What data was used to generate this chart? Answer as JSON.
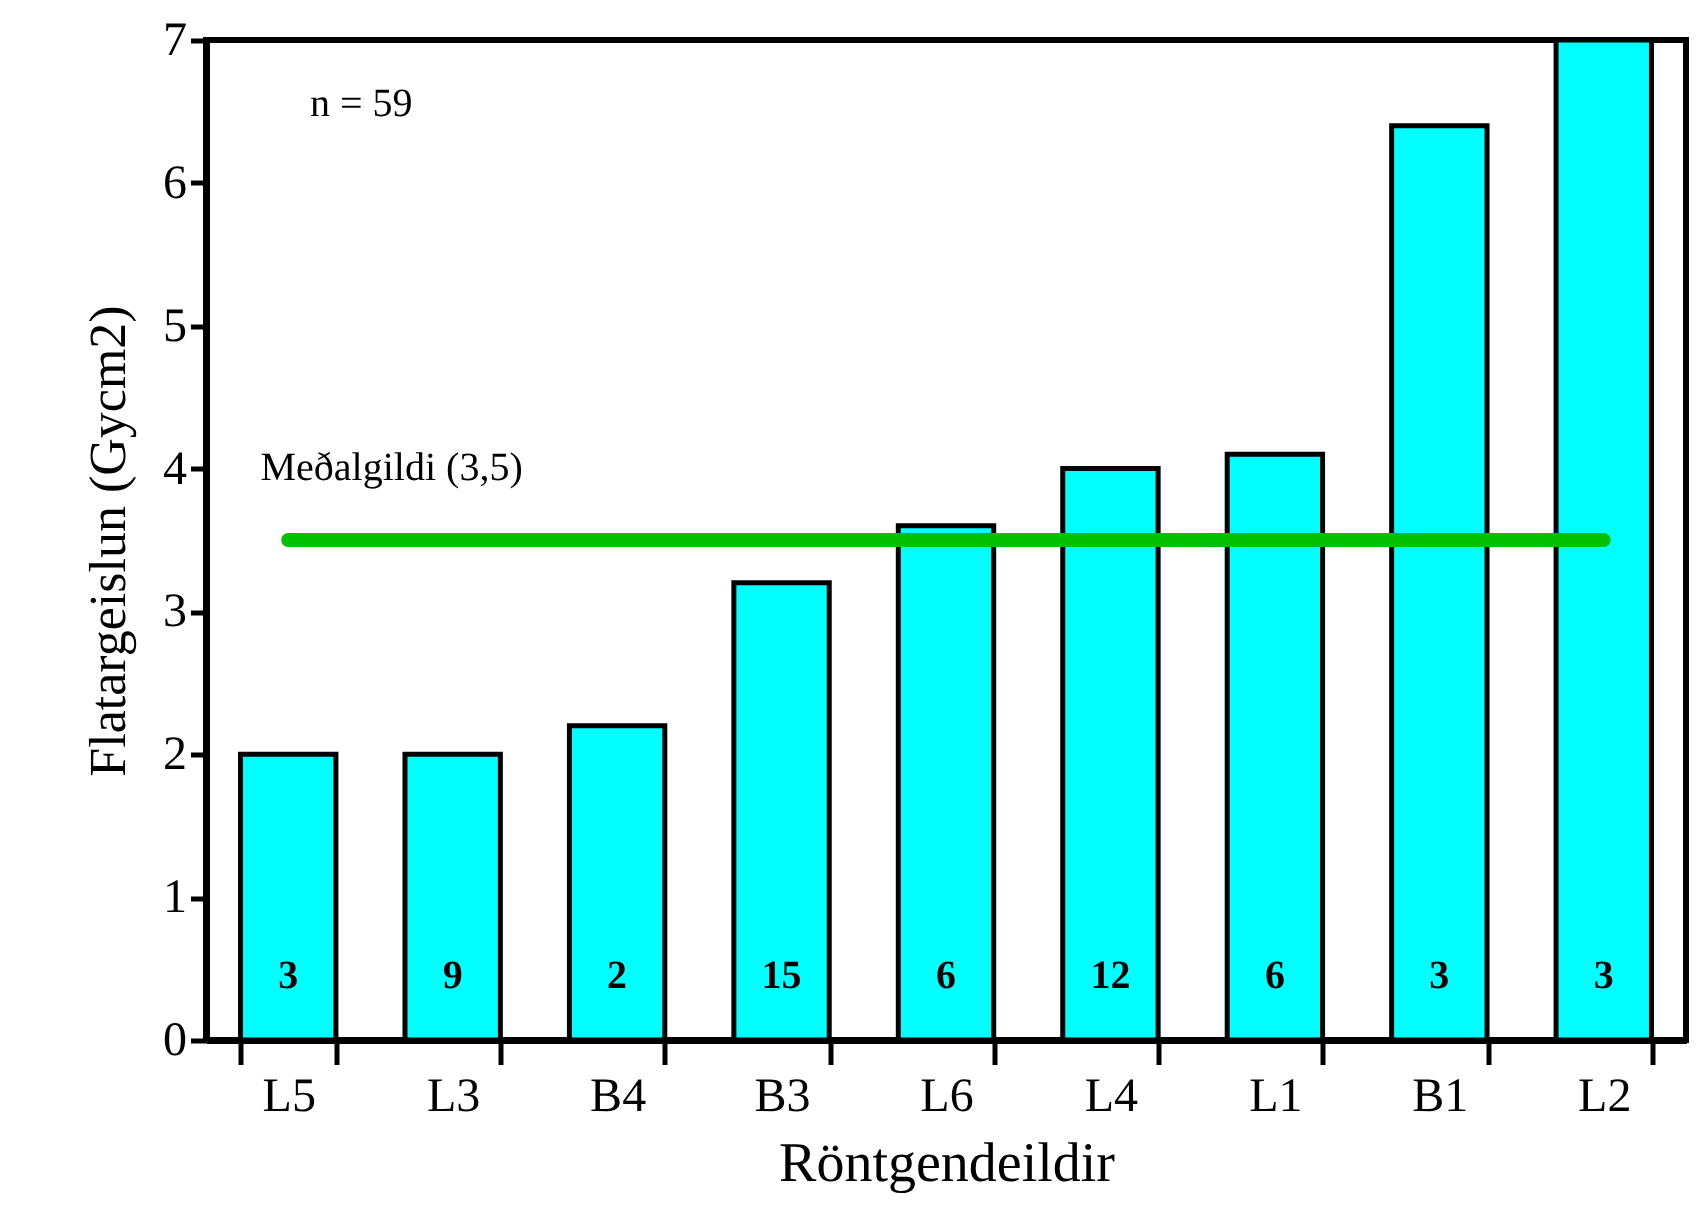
{
  "chart_data": {
    "type": "bar",
    "xlabel": "Röntgendeildir",
    "ylabel": "Flatargeislun (Gycm2)",
    "categories": [
      "L5",
      "L3",
      "B4",
      "B3",
      "L6",
      "L4",
      "L1",
      "B1",
      "L2"
    ],
    "values": [
      2,
      2,
      2.2,
      3.2,
      3.6,
      4.0,
      4.1,
      6.4,
      7.0
    ],
    "color": "#00ffff",
    "ylim": [
      0,
      7
    ],
    "yticks": [
      0,
      1,
      2,
      3,
      4,
      5,
      6,
      7
    ],
    "grid": false,
    "ref_lines": [
      {
        "axis": "y",
        "value": 3.5,
        "label": "Meðalgildi (3,5)",
        "color": "#00c000"
      }
    ],
    "annotations": [
      "n = 59",
      "3",
      "9",
      "2",
      "15",
      "6",
      "12",
      "6",
      "3",
      "3"
    ]
  }
}
